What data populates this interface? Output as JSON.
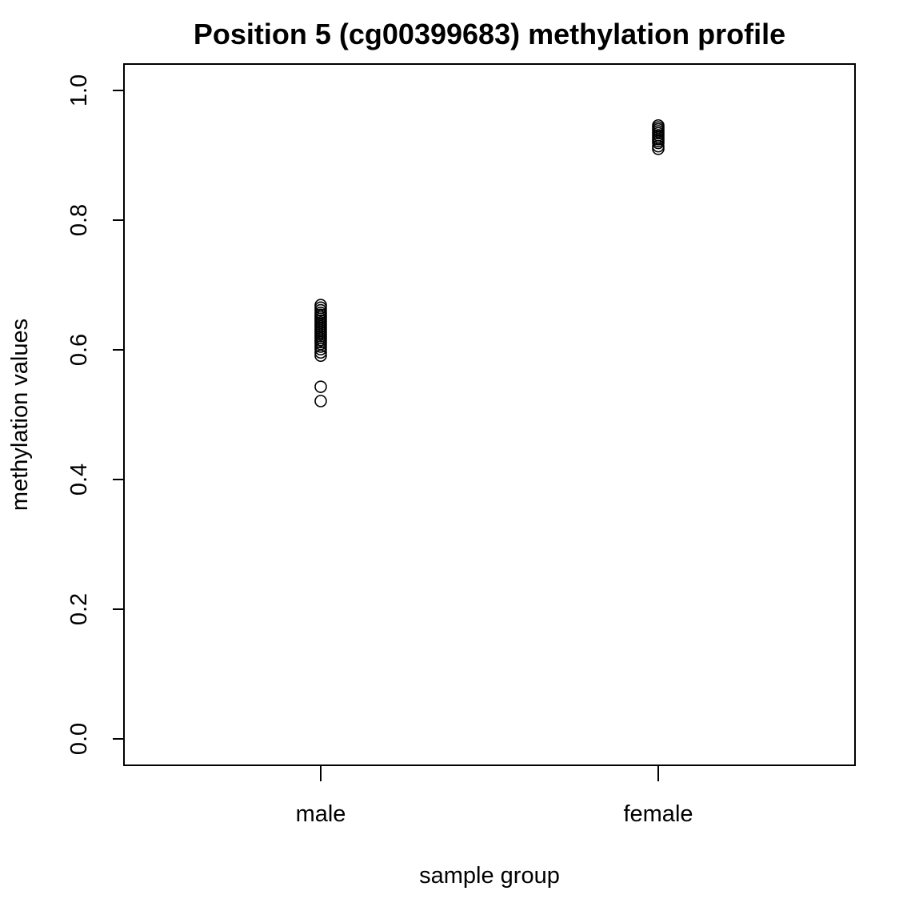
{
  "chart_data": {
    "type": "scatter",
    "title": "Position 5 (cg00399683) methylation profile",
    "xlabel": "sample group",
    "ylabel": "methylation values",
    "categories": [
      "male",
      "female"
    ],
    "ylim": [
      0.0,
      1.0
    ],
    "yticks": [
      "0.0",
      "0.2",
      "0.4",
      "0.6",
      "0.8",
      "1.0"
    ],
    "grid": false,
    "marker": "open-circle",
    "series": [
      {
        "category": "male",
        "values": [
          0.669,
          0.665,
          0.661,
          0.657,
          0.654,
          0.651,
          0.648,
          0.645,
          0.642,
          0.639,
          0.636,
          0.633,
          0.63,
          0.627,
          0.624,
          0.621,
          0.618,
          0.615,
          0.612,
          0.609,
          0.605,
          0.601,
          0.596,
          0.591,
          0.543,
          0.521
        ]
      },
      {
        "category": "female",
        "values": [
          0.946,
          0.943,
          0.94,
          0.937,
          0.934,
          0.931,
          0.928,
          0.925,
          0.922,
          0.919,
          0.914,
          0.91
        ]
      }
    ]
  }
}
